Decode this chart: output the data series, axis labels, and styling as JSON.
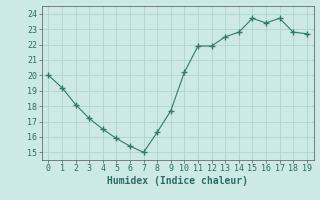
{
  "x": [
    0,
    1,
    2,
    3,
    4,
    5,
    6,
    7,
    8,
    9,
    10,
    11,
    12,
    13,
    14,
    15,
    16,
    17,
    18,
    19
  ],
  "y": [
    20.0,
    19.2,
    18.1,
    17.2,
    16.5,
    15.9,
    15.4,
    15.0,
    16.3,
    17.7,
    20.2,
    21.9,
    21.9,
    22.5,
    22.8,
    23.7,
    23.4,
    23.7,
    22.8,
    22.7
  ],
  "line_color": "#2d7a6e",
  "marker": "+",
  "marker_size": 4,
  "bg_color": "#cce9e5",
  "grid_color": "#b0d4cf",
  "xlabel": "Humidex (Indice chaleur)",
  "xlabel_fontsize": 7,
  "tick_fontsize": 6,
  "ylim": [
    14.5,
    24.5
  ],
  "xlim": [
    -0.5,
    19.5
  ],
  "yticks": [
    15,
    16,
    17,
    18,
    19,
    20,
    21,
    22,
    23,
    24
  ],
  "xticks": [
    0,
    1,
    2,
    3,
    4,
    5,
    6,
    7,
    8,
    9,
    10,
    11,
    12,
    13,
    14,
    15,
    16,
    17,
    18,
    19
  ]
}
